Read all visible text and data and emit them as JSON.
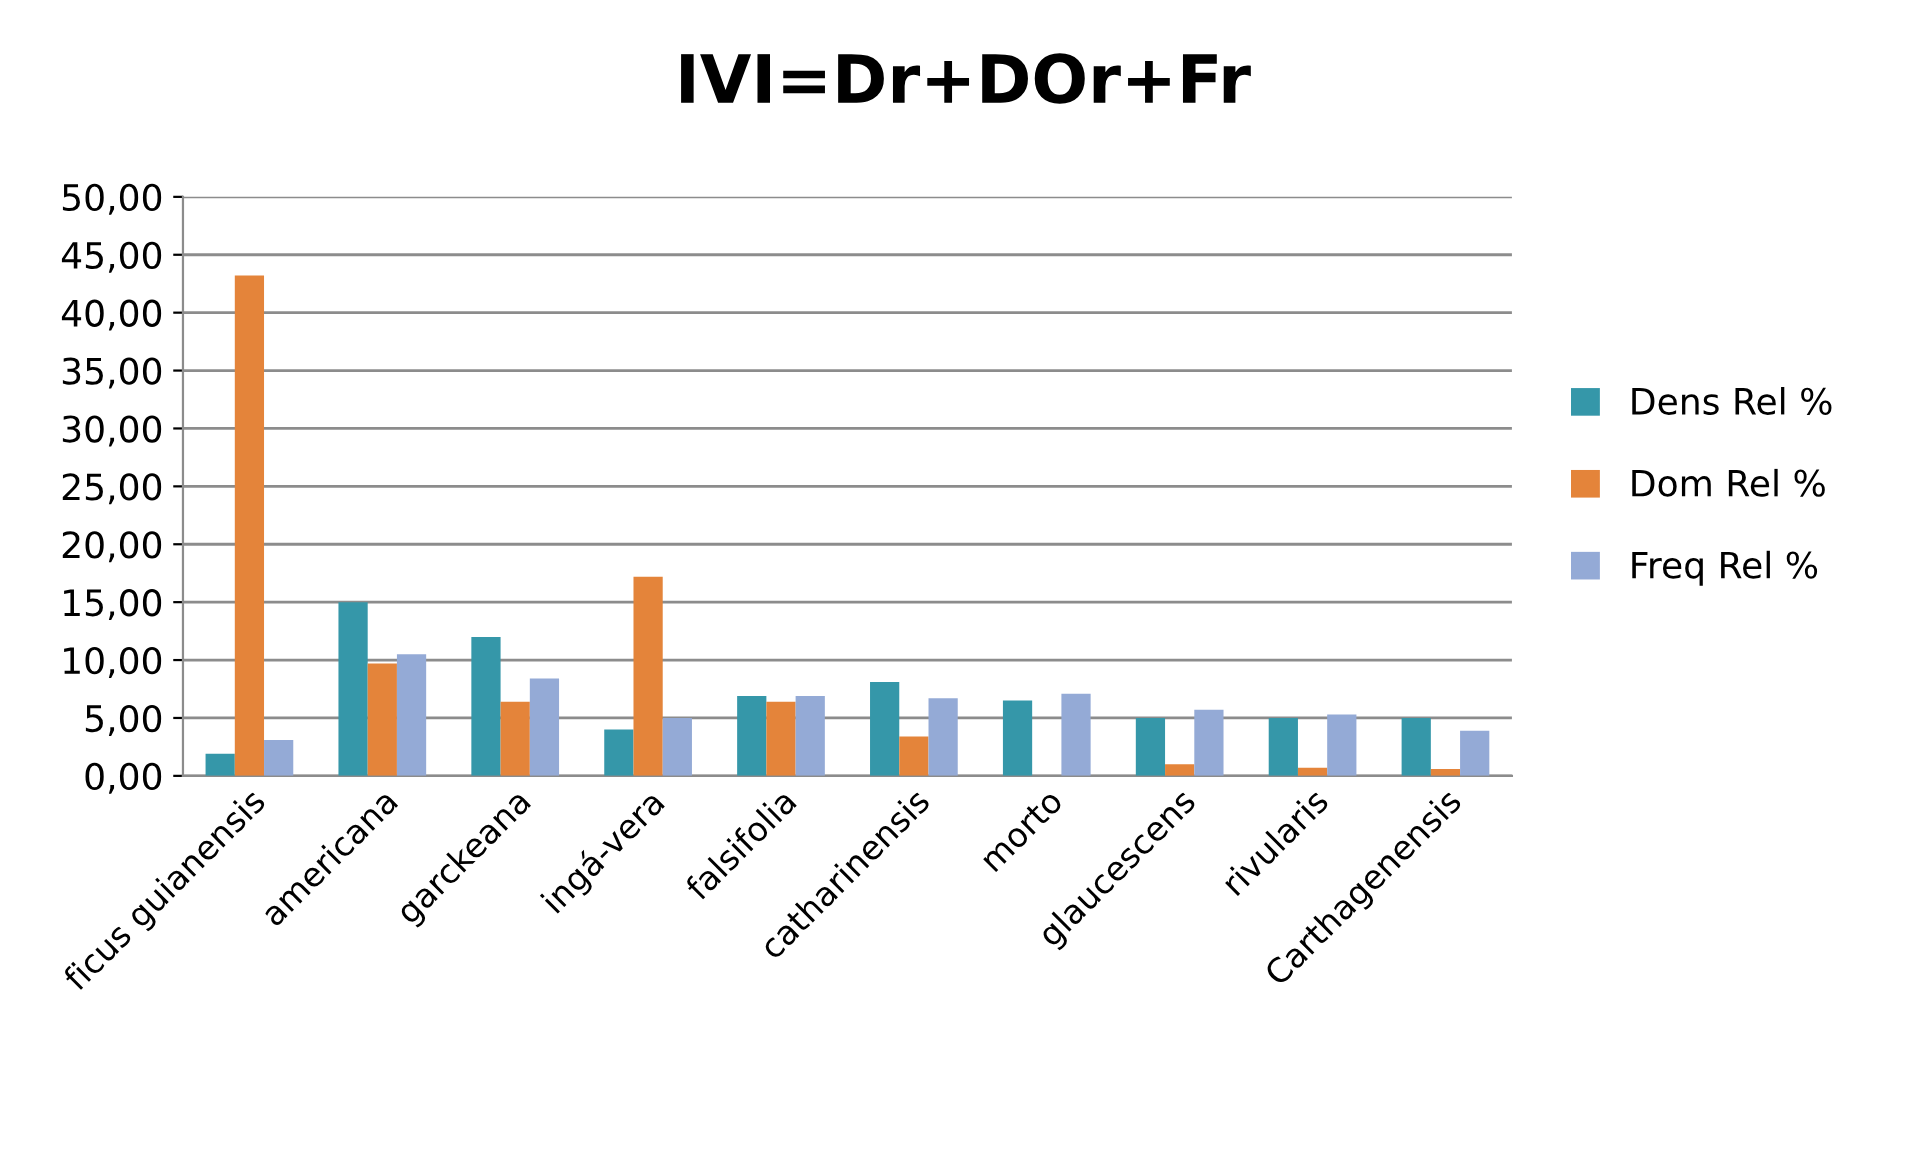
{
  "chart_data": {
    "type": "bar",
    "title": "IVI=Dr+DOr+Fr",
    "categories": [
      "ficus guianensis",
      "americana",
      "garckeana",
      "ingá-vera",
      "falsifolia",
      "catharinensis",
      "morto",
      "glaucescens",
      "rivularis",
      "Carthagenensis"
    ],
    "series": [
      {
        "name": "Dens Rel %",
        "color": "#3597a9",
        "values": [
          1.9,
          15.0,
          12.0,
          4.0,
          6.9,
          8.1,
          6.5,
          5.0,
          5.0,
          5.0
        ]
      },
      {
        "name": "Dom Rel %",
        "color": "#e4843a",
        "values": [
          43.2,
          9.7,
          6.4,
          17.2,
          6.4,
          3.4,
          0,
          1.0,
          0.7,
          0.6
        ]
      },
      {
        "name": "Freq Rel %",
        "color": "#94aad6",
        "values": [
          3.1,
          10.5,
          8.4,
          5.0,
          6.9,
          6.7,
          7.1,
          5.7,
          5.3,
          3.9
        ]
      }
    ],
    "ylim": [
      0,
      50
    ],
    "yticks": [
      {
        "value": 0,
        "label": "0,00"
      },
      {
        "value": 5,
        "label": "5,00"
      },
      {
        "value": 10,
        "label": "10,00"
      },
      {
        "value": 15,
        "label": "15,00"
      },
      {
        "value": 20,
        "label": "20,00"
      },
      {
        "value": 25,
        "label": "25,00"
      },
      {
        "value": 30,
        "label": "30,00"
      },
      {
        "value": 35,
        "label": "35,00"
      },
      {
        "value": 40,
        "label": "40,00"
      },
      {
        "value": 45,
        "label": "45,00"
      },
      {
        "value": 50,
        "label": "50,00"
      }
    ],
    "grid": "y",
    "legend": "right"
  }
}
